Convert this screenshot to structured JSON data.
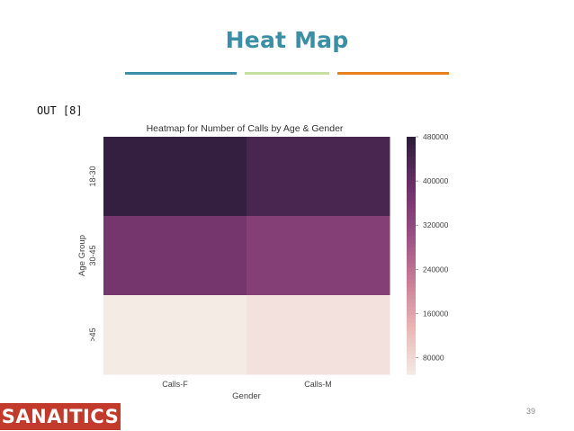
{
  "slide": {
    "title": "Heat Map",
    "out_label": "OUT [8]",
    "page_number": "39",
    "logo_text": "SANAITICS",
    "colors": {
      "title": "#3a8fa6",
      "rule_1": "#3a8fa6",
      "rule_2": "#c6e0a0",
      "rule_3": "#e8801e",
      "logo_bg": "#c23a2c"
    }
  },
  "chart_data": {
    "type": "heatmap",
    "title": "Heatmap for Number of Calls by Age & Gender",
    "xlabel": "Gender",
    "ylabel": "Age Group",
    "x_categories": [
      "Calls-F",
      "Calls-M"
    ],
    "y_categories": [
      "18-30",
      "30-45",
      ">45"
    ],
    "values": [
      [
        470000,
        440000
      ],
      [
        375000,
        350000
      ],
      [
        52000,
        68000
      ]
    ],
    "colorbar": {
      "min": 50000,
      "max": 480000,
      "ticks": [
        "480000",
        "400000",
        "320000",
        "240000",
        "160000",
        "80000"
      ],
      "colormap": [
        "#f4ece6",
        "#e9b8b5",
        "#ca7d96",
        "#9a4d83",
        "#6a3068",
        "#2d1d3b"
      ]
    },
    "grid": false
  }
}
